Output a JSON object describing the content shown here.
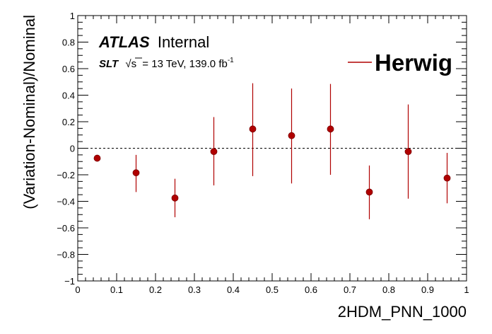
{
  "chart_data": {
    "type": "scatter",
    "title": "",
    "xlabel": "2HDM_PNN_1000",
    "ylabel": "(Variation-Nominal)/Nominal",
    "xlim": [
      0,
      1
    ],
    "ylim": [
      -1,
      1
    ],
    "x_ticks": [
      "0",
      "0.1",
      "0.2",
      "0.3",
      "0.4",
      "0.5",
      "0.6",
      "0.7",
      "0.8",
      "0.9",
      "1"
    ],
    "y_ticks": [
      "−1",
      "−0.8",
      "−0.6",
      "−0.4",
      "−0.2",
      "0",
      "0.2",
      "0.4",
      "0.6",
      "0.8",
      "1"
    ],
    "grid": false,
    "reference_line": 0,
    "legend_position": "top-right",
    "annotations": {
      "experiment": "ATLAS",
      "status": "Internal",
      "channel": "SLT",
      "sqrt_s": "s",
      "energy_lumi": "= 13 TeV, 139.0 fb",
      "lumi_exponent": "-1"
    },
    "series": [
      {
        "name": "Herwig",
        "color": "#b00000",
        "x": [
          0.05,
          0.15,
          0.25,
          0.35,
          0.45,
          0.55,
          0.65,
          0.75,
          0.85,
          0.95
        ],
        "y": [
          -0.075,
          -0.185,
          -0.375,
          -0.025,
          0.145,
          0.095,
          0.145,
          -0.33,
          -0.025,
          -0.225
        ],
        "err_low": [
          0.0,
          0.145,
          0.145,
          0.255,
          0.355,
          0.36,
          0.345,
          0.205,
          0.355,
          0.19
        ],
        "err_high": [
          0.0,
          0.135,
          0.145,
          0.26,
          0.345,
          0.355,
          0.34,
          0.2,
          0.355,
          0.19
        ]
      }
    ]
  }
}
